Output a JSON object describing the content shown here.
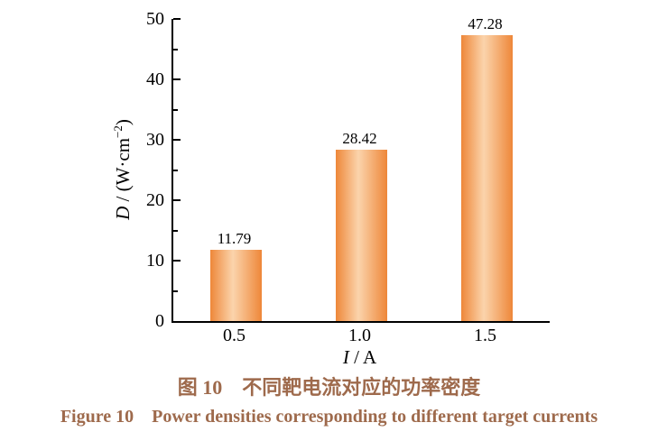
{
  "chart_data": {
    "type": "bar",
    "title": "",
    "categories": [
      "0.5",
      "1.0",
      "1.5"
    ],
    "values": [
      11.79,
      28.42,
      47.28
    ],
    "value_labels": [
      "11.79",
      "28.42",
      "47.28"
    ],
    "xlabel": {
      "var": "I",
      "rest": " / A"
    },
    "ylabel": {
      "var": "D",
      "mid": " / (W·cm",
      "sup": "−2",
      "close": ")"
    },
    "ylim": [
      0,
      50
    ],
    "ytick_major": [
      0,
      10,
      20,
      30,
      40,
      50
    ],
    "ytick_minor": [
      5,
      15,
      25,
      35,
      45
    ],
    "grid": false,
    "legend": null,
    "bar_colors": {
      "edge": "#ee8739",
      "light": "#fbd4ac"
    },
    "axis_color": "#000000"
  },
  "caption": {
    "line1": "图 10　不同靶电流对应的功率密度",
    "line2": "Figure 10　Power densities corresponding to different target currents",
    "color": "#9e6a4c"
  }
}
